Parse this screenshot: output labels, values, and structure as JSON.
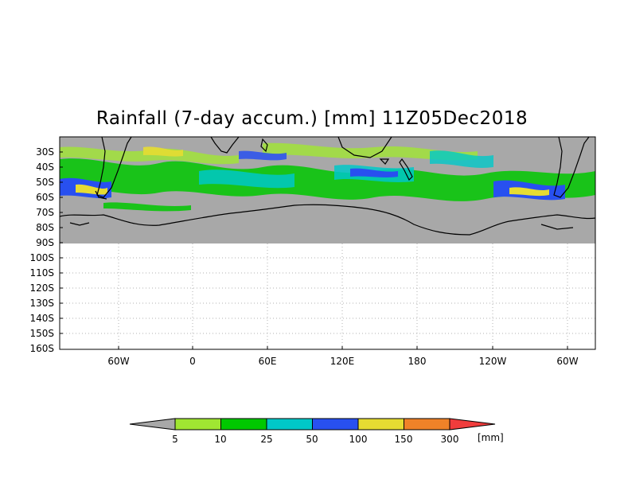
{
  "title": "Rainfall (7-day accum.) [mm] 11Z05Dec2018",
  "y_axis": {
    "ticks": [
      "30S",
      "40S",
      "50S",
      "60S",
      "70S",
      "80S",
      "90S",
      "100S",
      "110S",
      "120S",
      "130S",
      "140S",
      "150S",
      "160S"
    ]
  },
  "x_axis": {
    "ticks": [
      "60W",
      "0",
      "60E",
      "120E",
      "180",
      "120W",
      "60W"
    ]
  },
  "legend": {
    "labels": [
      "5",
      "10",
      "25",
      "50",
      "100",
      "150",
      "300"
    ],
    "unit": "[mm]",
    "colors": [
      "#a8a8a8",
      "#a0e632",
      "#00c800",
      "#00c8c8",
      "#2850f0",
      "#e6dc32",
      "#f08228",
      "#f03c3c"
    ]
  },
  "colors": {
    "no_rain": "#a8a8a8",
    "blank": "#ffffff",
    "coast": "#000000",
    "grid": "#b0b0b0"
  }
}
